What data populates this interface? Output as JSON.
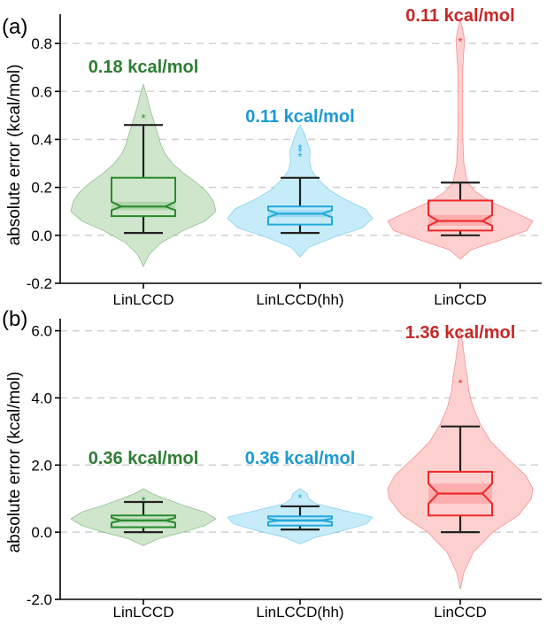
{
  "colors": {
    "LinLCCD": {
      "fill": "#cfe6cc",
      "line": "#2a8a2e",
      "dark": "#a9d2a5",
      "text": "#2e7d32"
    },
    "LinLCCD(hh)": {
      "fill": "#c5ecf8",
      "line": "#22a7dc",
      "dark": "#9adbf1",
      "text": "#1b9ad2"
    },
    "LinCCD": {
      "fill": "#fdd0d0",
      "line": "#ee2a2a",
      "dark": "#fba8a8",
      "text": "#c62828"
    },
    "whisker": "#222222"
  },
  "chart_data": [
    {
      "type": "violin",
      "panel_label": "(a)",
      "ylabel": "absolute error (kcal/mol)",
      "ylim": [
        -0.2,
        0.9
      ],
      "yticks": [
        -0.2,
        0.0,
        0.2,
        0.4,
        0.6,
        0.8
      ],
      "ytick_labels": [
        "-0.2",
        "0.0",
        "0.2",
        "0.4",
        "0.6",
        "0.8"
      ],
      "grid_y": [
        0.0,
        0.2,
        0.4,
        0.6,
        0.8
      ],
      "categories": [
        "LinLCCD",
        "LinLCCD(hh)",
        "LinCCD"
      ],
      "series": [
        {
          "category": "LinLCCD",
          "annotation": "0.18 kcal/mol",
          "q1": 0.08,
          "median": 0.12,
          "q3": 0.24,
          "notch_low": 0.105,
          "notch_high": 0.14,
          "whisker_low": 0.01,
          "whisker_high": 0.46,
          "outliers": [
            0.49
          ],
          "violin": [
            [
              -0.13,
              0.0
            ],
            [
              -0.08,
              0.08
            ],
            [
              -0.03,
              0.25
            ],
            [
              0.02,
              0.55
            ],
            [
              0.06,
              0.85
            ],
            [
              0.1,
              1.0
            ],
            [
              0.14,
              0.97
            ],
            [
              0.18,
              0.88
            ],
            [
              0.22,
              0.73
            ],
            [
              0.26,
              0.55
            ],
            [
              0.3,
              0.4
            ],
            [
              0.34,
              0.3
            ],
            [
              0.38,
              0.24
            ],
            [
              0.42,
              0.2
            ],
            [
              0.46,
              0.16
            ],
            [
              0.5,
              0.12
            ],
            [
              0.54,
              0.08
            ],
            [
              0.58,
              0.05
            ],
            [
              0.63,
              0.0
            ]
          ]
        },
        {
          "category": "LinLCCD(hh)",
          "annotation": "0.11 kcal/mol",
          "q1": 0.045,
          "median": 0.09,
          "q3": 0.12,
          "notch_low": 0.075,
          "notch_high": 0.105,
          "whisker_low": 0.01,
          "whisker_high": 0.24,
          "outliers": [
            0.33,
            0.35,
            0.365
          ],
          "violin": [
            [
              -0.09,
              0.0
            ],
            [
              -0.05,
              0.12
            ],
            [
              -0.01,
              0.45
            ],
            [
              0.03,
              0.85
            ],
            [
              0.07,
              1.0
            ],
            [
              0.11,
              0.9
            ],
            [
              0.15,
              0.62
            ],
            [
              0.19,
              0.4
            ],
            [
              0.23,
              0.26
            ],
            [
              0.27,
              0.16
            ],
            [
              0.31,
              0.13
            ],
            [
              0.35,
              0.14
            ],
            [
              0.39,
              0.1
            ],
            [
              0.43,
              0.05
            ],
            [
              0.46,
              0.0
            ]
          ]
        },
        {
          "category": "LinCCD",
          "annotation": "0.11 kcal/mol",
          "q1": 0.02,
          "median": 0.06,
          "q3": 0.145,
          "notch_low": 0.04,
          "notch_high": 0.085,
          "whisker_low": 0.0,
          "whisker_high": 0.22,
          "outliers": [
            0.81
          ],
          "violin": [
            [
              -0.1,
              0.0
            ],
            [
              -0.06,
              0.15
            ],
            [
              -0.02,
              0.55
            ],
            [
              0.02,
              0.92
            ],
            [
              0.06,
              1.0
            ],
            [
              0.1,
              0.72
            ],
            [
              0.14,
              0.42
            ],
            [
              0.18,
              0.22
            ],
            [
              0.22,
              0.1
            ],
            [
              0.3,
              0.05
            ],
            [
              0.4,
              0.035
            ],
            [
              0.5,
              0.03
            ],
            [
              0.6,
              0.03
            ],
            [
              0.7,
              0.035
            ],
            [
              0.77,
              0.05
            ],
            [
              0.81,
              0.06
            ],
            [
              0.85,
              0.04
            ],
            [
              0.9,
              0.0
            ]
          ]
        }
      ]
    },
    {
      "type": "violin",
      "panel_label": "(b)",
      "ylabel": "absolute error (kcal/mol)",
      "ylim": [
        -2.0,
        6.2
      ],
      "yticks": [
        -2.0,
        0.0,
        2.0,
        4.0,
        6.0
      ],
      "ytick_labels": [
        "-2.0",
        "0.0",
        "2.0",
        "4.0",
        "6.0"
      ],
      "grid_y": [
        0.0,
        2.0,
        4.0,
        6.0
      ],
      "categories": [
        "LinLCCD",
        "LinLCCD(hh)",
        "LinCCD"
      ],
      "series": [
        {
          "category": "LinLCCD",
          "annotation": "0.36 kcal/mol",
          "q1": 0.15,
          "median": 0.35,
          "q3": 0.5,
          "notch_low": 0.28,
          "notch_high": 0.43,
          "whisker_low": 0.0,
          "whisker_high": 0.9,
          "outliers": [
            0.95
          ],
          "violin": [
            [
              -0.4,
              0.0
            ],
            [
              -0.2,
              0.2
            ],
            [
              0.0,
              0.55
            ],
            [
              0.2,
              0.85
            ],
            [
              0.4,
              1.0
            ],
            [
              0.6,
              0.85
            ],
            [
              0.8,
              0.55
            ],
            [
              1.0,
              0.3
            ],
            [
              1.15,
              0.12
            ],
            [
              1.3,
              0.0
            ]
          ]
        },
        {
          "category": "LinLCCD(hh)",
          "annotation": "0.36 kcal/mol",
          "q1": 0.2,
          "median": 0.35,
          "q3": 0.47,
          "notch_low": 0.3,
          "notch_high": 0.41,
          "whisker_low": 0.08,
          "whisker_high": 0.77,
          "outliers": [
            1.03
          ],
          "violin": [
            [
              -0.35,
              0.0
            ],
            [
              -0.15,
              0.22
            ],
            [
              0.05,
              0.6
            ],
            [
              0.25,
              0.92
            ],
            [
              0.45,
              1.0
            ],
            [
              0.65,
              0.6
            ],
            [
              0.85,
              0.22
            ],
            [
              1.0,
              0.12
            ],
            [
              1.15,
              0.1
            ],
            [
              1.3,
              0.0
            ]
          ]
        },
        {
          "category": "LinCCD",
          "annotation": "1.36 kcal/mol",
          "q1": 0.5,
          "median": 1.15,
          "q3": 1.8,
          "notch_low": 0.85,
          "notch_high": 1.45,
          "whisker_low": 0.0,
          "whisker_high": 3.15,
          "outliers": [
            4.45
          ],
          "violin": [
            [
              -1.7,
              0.0
            ],
            [
              -1.2,
              0.05
            ],
            [
              -0.6,
              0.18
            ],
            [
              0.0,
              0.45
            ],
            [
              0.5,
              0.8
            ],
            [
              1.0,
              0.98
            ],
            [
              1.3,
              1.0
            ],
            [
              1.7,
              0.9
            ],
            [
              2.2,
              0.65
            ],
            [
              2.7,
              0.42
            ],
            [
              3.2,
              0.28
            ],
            [
              3.7,
              0.18
            ],
            [
              4.2,
              0.12
            ],
            [
              4.6,
              0.1
            ],
            [
              5.0,
              0.07
            ],
            [
              5.5,
              0.04
            ],
            [
              6.1,
              0.0
            ]
          ]
        }
      ]
    }
  ]
}
